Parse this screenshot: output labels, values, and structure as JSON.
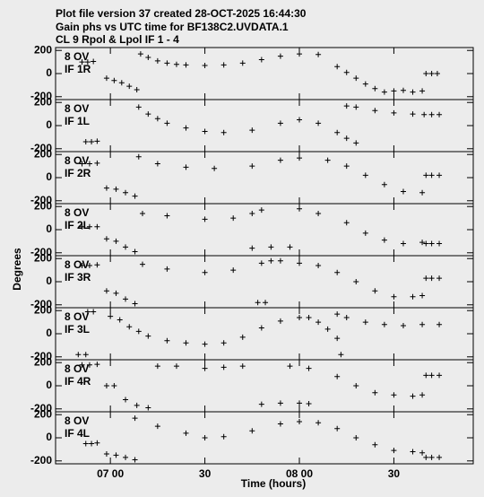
{
  "title_lines": [
    "Plot file version 37  created 28-OCT-2025 16:44:30",
    "Gain phs vs UTC time for BF138C2.UVDATA.1",
    "CL 9  Rpol & Lpol  IF 1 - 4"
  ],
  "y_label": "Degrees",
  "x_label": "Time (hours)",
  "chart_data": [
    {
      "type": "scatter",
      "label1": "8 OV",
      "label2": "IF 1R",
      "xlim": [
        6.71,
        8.92
      ],
      "ylim": [
        -225,
        225
      ],
      "yticks": [
        200,
        0,
        -200
      ],
      "xticks": [
        {
          "value": 7.0,
          "label": "07 00"
        },
        {
          "value": 7.5,
          "label": "30"
        },
        {
          "value": 8.0,
          "label": "08 00"
        },
        {
          "value": 8.5,
          "label": "30"
        }
      ],
      "x": [
        6.85,
        6.88,
        6.91,
        6.98,
        7.02,
        7.06,
        7.1,
        7.14,
        7.16,
        7.2,
        7.25,
        7.3,
        7.35,
        7.4,
        7.5,
        7.6,
        7.7,
        7.8,
        7.9,
        8.0,
        8.1,
        8.2,
        8.25,
        8.3,
        8.35,
        8.4,
        8.45,
        8.5,
        8.55,
        8.6,
        8.65,
        8.67,
        8.7,
        8.73
      ],
      "values": [
        100,
        100,
        105,
        -40,
        -60,
        -80,
        -110,
        -140,
        170,
        140,
        110,
        90,
        80,
        75,
        70,
        75,
        90,
        120,
        150,
        170,
        165,
        60,
        10,
        -40,
        -90,
        -130,
        -160,
        -150,
        -145,
        -160,
        -150,
        0,
        0,
        0
      ]
    },
    {
      "type": "scatter",
      "label1": "8 OV",
      "label2": "IF 1L",
      "xlim": [
        6.71,
        8.92
      ],
      "ylim": [
        -225,
        225
      ],
      "yticks": [
        200,
        0,
        -200
      ],
      "xticks": [
        {
          "value": 7.0,
          "label": "07 00"
        },
        {
          "value": 7.5,
          "label": "30"
        },
        {
          "value": 8.0,
          "label": "08 00"
        },
        {
          "value": 8.5,
          "label": "30"
        }
      ],
      "x": [
        6.87,
        6.9,
        6.93,
        7.15,
        7.2,
        7.25,
        7.3,
        7.4,
        7.5,
        7.6,
        7.75,
        7.9,
        8.0,
        8.1,
        8.2,
        8.25,
        8.3,
        8.25,
        8.3,
        8.4,
        8.5,
        8.6,
        8.66,
        8.7,
        8.74
      ],
      "values": [
        -140,
        -140,
        -135,
        160,
        100,
        60,
        20,
        -20,
        -50,
        -60,
        -40,
        20,
        50,
        20,
        -60,
        -110,
        -150,
        170,
        160,
        130,
        110,
        100,
        95,
        95,
        95
      ]
    },
    {
      "type": "scatter",
      "label1": "8 OV",
      "label2": "IF 2R",
      "xlim": [
        6.71,
        8.92
      ],
      "ylim": [
        -225,
        225
      ],
      "yticks": [
        200,
        0,
        -200
      ],
      "xticks": [
        {
          "value": 7.0,
          "label": "07 00"
        },
        {
          "value": 7.5,
          "label": "30"
        },
        {
          "value": 8.0,
          "label": "08 00"
        },
        {
          "value": 8.5,
          "label": "30"
        }
      ],
      "x": [
        6.85,
        6.89,
        6.93,
        6.98,
        7.03,
        7.08,
        7.13,
        7.15,
        7.25,
        7.4,
        7.55,
        7.75,
        7.9,
        8.0,
        8.15,
        8.25,
        8.35,
        8.45,
        8.55,
        8.65,
        8.67,
        8.7,
        8.74
      ],
      "values": [
        120,
        120,
        125,
        -90,
        -100,
        -130,
        -160,
        180,
        120,
        90,
        80,
        100,
        150,
        170,
        150,
        100,
        20,
        -60,
        -120,
        -130,
        20,
        20,
        20
      ]
    },
    {
      "type": "scatter",
      "label1": "8 OV",
      "label2": "IF 2L",
      "xlim": [
        6.71,
        8.92
      ],
      "ylim": [
        -225,
        225
      ],
      "yticks": [
        200,
        0,
        -200
      ],
      "xticks": [
        {
          "value": 7.0,
          "label": "07 00"
        },
        {
          "value": 7.5,
          "label": "30"
        },
        {
          "value": 8.0,
          "label": "08 00"
        },
        {
          "value": 8.5,
          "label": "30"
        }
      ],
      "x": [
        6.85,
        6.89,
        6.93,
        6.98,
        7.03,
        7.08,
        7.13,
        7.17,
        7.3,
        7.5,
        7.65,
        7.75,
        7.8,
        7.75,
        7.85,
        7.95,
        8.0,
        8.1,
        8.25,
        8.35,
        8.45,
        8.55,
        8.65,
        8.67,
        8.7,
        8.74
      ],
      "values": [
        25,
        25,
        25,
        -80,
        -100,
        -150,
        -190,
        140,
        120,
        90,
        100,
        140,
        170,
        -160,
        -150,
        -150,
        180,
        140,
        60,
        -30,
        -90,
        -120,
        -110,
        -120,
        -120,
        -120
      ]
    },
    {
      "type": "scatter",
      "label1": "8 OV",
      "label2": "IF 3R",
      "xlim": [
        6.71,
        8.92
      ],
      "ylim": [
        -225,
        225
      ],
      "yticks": [
        200,
        0,
        -200
      ],
      "xticks": [
        {
          "value": 7.0,
          "label": "07 00"
        },
        {
          "value": 7.5,
          "label": "30"
        },
        {
          "value": 8.0,
          "label": "08 00"
        },
        {
          "value": 8.5,
          "label": "30"
        }
      ],
      "x": [
        6.85,
        6.89,
        6.93,
        6.98,
        7.03,
        7.08,
        7.13,
        7.17,
        7.3,
        7.5,
        7.65,
        7.8,
        7.85,
        7.78,
        7.82,
        7.9,
        8.0,
        8.1,
        8.2,
        8.3,
        8.4,
        8.5,
        8.6,
        8.65,
        8.67,
        8.7,
        8.74
      ],
      "values": [
        140,
        140,
        145,
        -80,
        -100,
        -150,
        -190,
        150,
        110,
        80,
        100,
        160,
        180,
        -180,
        -180,
        180,
        160,
        140,
        80,
        0,
        -80,
        -130,
        -130,
        -120,
        30,
        30,
        30
      ]
    },
    {
      "type": "scatter",
      "label1": "8 OV",
      "label2": "IF 3L",
      "xlim": [
        6.71,
        8.92
      ],
      "ylim": [
        -225,
        225
      ],
      "yticks": [
        200,
        0,
        -200
      ],
      "xticks": [
        {
          "value": 7.0,
          "label": "07 00"
        },
        {
          "value": 7.5,
          "label": "30"
        },
        {
          "value": 8.0,
          "label": "08 00"
        },
        {
          "value": 8.5,
          "label": "30"
        }
      ],
      "x": [
        6.83,
        6.87,
        6.88,
        6.91,
        7.0,
        7.05,
        7.1,
        7.15,
        7.2,
        7.3,
        7.4,
        7.5,
        7.6,
        7.7,
        7.8,
        7.9,
        8.0,
        8.05,
        8.1,
        8.15,
        8.2,
        8.22,
        8.2,
        8.25,
        8.35,
        8.45,
        8.55,
        8.65,
        8.74
      ],
      "values": [
        -180,
        -180,
        190,
        190,
        150,
        120,
        60,
        20,
        -20,
        -60,
        -80,
        -90,
        -80,
        -30,
        50,
        110,
        140,
        140,
        100,
        40,
        -40,
        -180,
        170,
        140,
        100,
        80,
        70,
        80,
        80
      ]
    },
    {
      "type": "scatter",
      "label1": "8 OV",
      "label2": "IF 4R",
      "xlim": [
        6.71,
        8.92
      ],
      "ylim": [
        -225,
        225
      ],
      "yticks": [
        200,
        0,
        -200
      ],
      "xticks": [
        {
          "value": 7.0,
          "label": "07 00"
        },
        {
          "value": 7.5,
          "label": "30"
        },
        {
          "value": 8.0,
          "label": "08 00"
        },
        {
          "value": 8.5,
          "label": "30"
        }
      ],
      "x": [
        6.85,
        6.89,
        6.93,
        6.98,
        7.02,
        7.08,
        7.14,
        7.2,
        7.25,
        7.35,
        7.5,
        7.6,
        7.7,
        7.8,
        7.9,
        8.0,
        8.05,
        7.95,
        8.05,
        8.2,
        8.3,
        8.4,
        8.5,
        8.6,
        8.65,
        8.67,
        8.7,
        8.74
      ],
      "values": [
        180,
        180,
        185,
        0,
        0,
        -120,
        -170,
        -190,
        170,
        170,
        150,
        160,
        170,
        -160,
        -150,
        -150,
        -155,
        170,
        150,
        80,
        0,
        -60,
        -80,
        -90,
        -80,
        90,
        90,
        90
      ]
    },
    {
      "type": "scatter",
      "label1": "8 OV",
      "label2": "IF 4L",
      "xlim": [
        6.71,
        8.92
      ],
      "ylim": [
        -225,
        225
      ],
      "yticks": [
        200,
        0,
        -200
      ],
      "xticks": [
        {
          "value": 7.0,
          "label": "07 00"
        },
        {
          "value": 7.5,
          "label": "30"
        },
        {
          "value": 8.0,
          "label": "08 00"
        },
        {
          "value": 8.5,
          "label": "30"
        }
      ],
      "x": [
        6.87,
        6.9,
        6.93,
        6.98,
        7.03,
        7.08,
        7.13,
        7.13,
        7.25,
        7.4,
        7.5,
        7.6,
        7.75,
        7.9,
        8.0,
        8.1,
        8.2,
        8.3,
        8.4,
        8.5,
        8.6,
        8.65,
        8.67,
        8.7,
        8.74
      ],
      "values": [
        -50,
        -50,
        -45,
        -140,
        -150,
        -170,
        -190,
        170,
        100,
        40,
        0,
        10,
        60,
        120,
        140,
        130,
        80,
        0,
        -60,
        -110,
        -120,
        -130,
        -170,
        -170,
        -170
      ]
    }
  ]
}
